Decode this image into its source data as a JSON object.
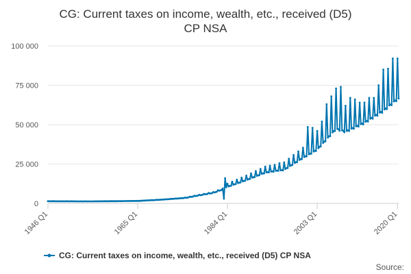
{
  "chart_data": {
    "type": "line",
    "title_line1": "CG: Current taxes on income, wealth, etc., received (D5)",
    "title_line2": "CP NSA",
    "xlabel": "",
    "ylabel": "",
    "x_ticks": [
      "1946 Q1",
      "1965 Q1",
      "1984 Q1",
      "2003 Q1",
      "2020 Q1"
    ],
    "y_ticks": [
      "0",
      "25 000",
      "50 000",
      "75 000",
      "100 000"
    ],
    "y_tick_values": [
      0,
      25000,
      50000,
      75000,
      100000
    ],
    "ylim": [
      0,
      100000
    ],
    "x_start": "1946 Q1",
    "x_end": "2020 Q2",
    "grid": true,
    "legend_placement": "bottom",
    "series": [
      {
        "name": "CG: Current taxes on income, wealth, etc., received (D5) CP NSA",
        "color": "#0075b0",
        "frequency": "quarterly",
        "anchor_points": [
          {
            "x": "1946 Q1",
            "y": 1400
          },
          {
            "x": "1955 Q1",
            "y": 1300
          },
          {
            "x": "1965 Q1",
            "y": 1600
          },
          {
            "x": "1970 Q1",
            "y": 2400
          },
          {
            "x": "1975 Q1",
            "y": 3500
          },
          {
            "x": "1978 Q1",
            "y": 5200
          },
          {
            "x": "1981 Q1",
            "y": 6800
          },
          {
            "x": "1983 Q1",
            "y": 9000
          },
          {
            "x": "1984 Q1",
            "y": 11000
          },
          {
            "x": "1988 Q1",
            "y": 15500
          },
          {
            "x": "1992 Q1",
            "y": 20500
          },
          {
            "x": "1996 Q1",
            "y": 22500
          },
          {
            "x": "2000 Q1",
            "y": 30500
          },
          {
            "x": "2003 Q1",
            "y": 36000
          },
          {
            "x": "2007 Q1",
            "y": 50000
          },
          {
            "x": "2009 Q1",
            "y": 48000
          },
          {
            "x": "2013 Q1",
            "y": 54000
          },
          {
            "x": "2017 Q1",
            "y": 62000
          },
          {
            "x": "2020 Q1",
            "y": 70000
          }
        ],
        "annual_peaks": [
          {
            "year": 2001,
            "y": 48500
          },
          {
            "year": 2002,
            "y": 48000
          },
          {
            "year": 2003,
            "y": 46000
          },
          {
            "year": 2004,
            "y": 52000
          },
          {
            "year": 2005,
            "y": 63000
          },
          {
            "year": 2006,
            "y": 68000
          },
          {
            "year": 2007,
            "y": 73000
          },
          {
            "year": 2008,
            "y": 74000
          },
          {
            "year": 2009,
            "y": 62000
          },
          {
            "year": 2010,
            "y": 67000
          },
          {
            "year": 2011,
            "y": 66000
          },
          {
            "year": 2012,
            "y": 64000
          },
          {
            "year": 2013,
            "y": 64000
          },
          {
            "year": 2014,
            "y": 67000
          },
          {
            "year": 2015,
            "y": 67000
          },
          {
            "year": 2016,
            "y": 75000
          },
          {
            "year": 2017,
            "y": 85000
          },
          {
            "year": 2018,
            "y": 85500
          },
          {
            "year": 2019,
            "y": 92000
          },
          {
            "year": 2020,
            "y": 92000
          }
        ],
        "notable_points": [
          {
            "x": "1983 Q2",
            "y": 3000
          },
          {
            "x": "1983 Q3",
            "y": 16000
          }
        ]
      }
    ]
  },
  "legend": {
    "label": "CG: Current taxes on income, wealth, etc., received (D5) CP NSA"
  },
  "source_label": "Source:"
}
